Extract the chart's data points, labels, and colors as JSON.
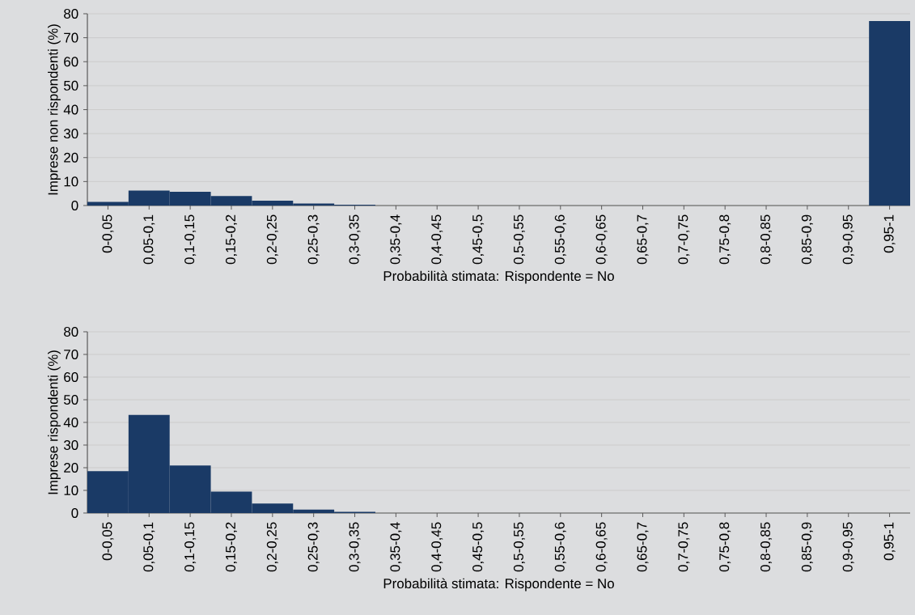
{
  "chart_data": [
    {
      "type": "bar",
      "xlabel": "Probabilità stimata: Rispondente = No",
      "ylabel": "Imprese non rispondenti (%)",
      "categories": [
        "0-0,05",
        "0,05-0,1",
        "0,1-0,15",
        "0,15-0,2",
        "0,2-0,25",
        "0,25-0,3",
        "0,3-0,35",
        "0,35-0,4",
        "0,4-0,45",
        "0,45-0,5",
        "0,5-0,55",
        "0,55-0,6",
        "0,6-0,65",
        "0,65-0,7",
        "0,7-0,75",
        "0,75-0,8",
        "0,8-0,85",
        "0,85-0,9",
        "0,9-0,95",
        "0,95-1"
      ],
      "values": [
        1.5,
        6.2,
        5.7,
        4,
        2,
        0.8,
        0.3,
        0,
        0,
        0,
        0,
        0,
        0,
        0,
        0,
        0,
        0,
        0,
        0,
        77
      ],
      "color": "#1a3a66",
      "ylim": [
        0,
        80
      ],
      "yticks": [
        0,
        10,
        20,
        30,
        40,
        50,
        60,
        70,
        80
      ],
      "grid": "y"
    },
    {
      "type": "bar",
      "xlabel": "Probabilità stimata: Rispondente = No",
      "ylabel": "Imprese rispondenti (%)",
      "categories": [
        "0-0,05",
        "0,05-0,1",
        "0,1-0,15",
        "0,15-0,2",
        "0,2-0,25",
        "0,25-0,3",
        "0,3-0,35",
        "0,35-0,4",
        "0,4-0,45",
        "0,45-0,5",
        "0,5-0,55",
        "0,55-0,6",
        "0,6-0,65",
        "0,65-0,7",
        "0,7-0,75",
        "0,75-0,8",
        "0,8-0,85",
        "0,85-0,9",
        "0,9-0,95",
        "0,95-1"
      ],
      "values": [
        18.5,
        43.3,
        21,
        9.5,
        4.2,
        1.5,
        0.5,
        0,
        0,
        0,
        0,
        0,
        0,
        0,
        0,
        0,
        0,
        0,
        0,
        0
      ],
      "color": "#1a3a66",
      "ylim": [
        0,
        80
      ],
      "yticks": [
        0,
        10,
        20,
        30,
        40,
        50,
        60,
        70,
        80
      ],
      "grid": "y"
    }
  ]
}
